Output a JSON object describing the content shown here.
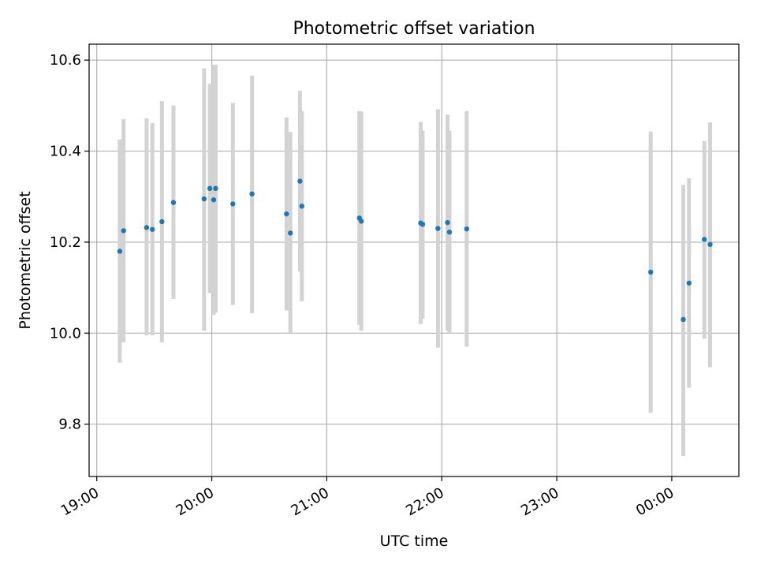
{
  "chart_data": {
    "type": "scatter",
    "title": "Photometric offset variation",
    "xlabel": "UTC time",
    "ylabel": "Photometric offset",
    "x_ticks": [
      "19:00",
      "20:00",
      "21:00",
      "22:00",
      "23:00",
      "00:00"
    ],
    "y_ticks": [
      "9.8",
      "10.0",
      "10.2",
      "10.4",
      "10.6"
    ],
    "xlim": [
      "18:56",
      "00:35"
    ],
    "ylim": [
      9.685,
      10.635
    ],
    "grid": true,
    "legend": "none",
    "series": [
      {
        "points": [
          {
            "time": "19:12",
            "value": 10.18,
            "low": 9.935,
            "high": 10.425
          },
          {
            "time": "19:14",
            "value": 10.225,
            "low": 9.98,
            "high": 10.47
          },
          {
            "time": "19:26",
            "value": 10.232,
            "low": 9.995,
            "high": 10.472
          },
          {
            "time": "19:29",
            "value": 10.228,
            "low": 9.995,
            "high": 10.462
          },
          {
            "time": "19:34",
            "value": 10.245,
            "low": 9.98,
            "high": 10.51
          },
          {
            "time": "19:40",
            "value": 10.287,
            "low": 10.075,
            "high": 10.5
          },
          {
            "time": "19:56",
            "value": 10.295,
            "low": 10.005,
            "high": 10.582
          },
          {
            "time": "19:59",
            "value": 10.318,
            "low": 10.088,
            "high": 10.548
          },
          {
            "time": "20:01",
            "value": 10.293,
            "low": 10.04,
            "high": 10.59
          },
          {
            "time": "20:02",
            "value": 10.318,
            "low": 10.045,
            "high": 10.59
          },
          {
            "time": "20:11",
            "value": 10.284,
            "low": 10.062,
            "high": 10.506
          },
          {
            "time": "20:21",
            "value": 10.306,
            "low": 10.044,
            "high": 10.566
          },
          {
            "time": "20:39",
            "value": 10.262,
            "low": 10.05,
            "high": 10.474
          },
          {
            "time": "20:41",
            "value": 10.22,
            "low": 10.0,
            "high": 10.442
          },
          {
            "time": "20:46",
            "value": 10.334,
            "low": 10.135,
            "high": 10.533
          },
          {
            "time": "20:47",
            "value": 10.279,
            "low": 10.07,
            "high": 10.488
          },
          {
            "time": "21:17",
            "value": 10.253,
            "low": 10.018,
            "high": 10.488
          },
          {
            "time": "21:18",
            "value": 10.246,
            "low": 10.005,
            "high": 10.487
          },
          {
            "time": "21:49",
            "value": 10.242,
            "low": 10.02,
            "high": 10.464
          },
          {
            "time": "21:50",
            "value": 10.239,
            "low": 10.032,
            "high": 10.445
          },
          {
            "time": "21:58",
            "value": 10.23,
            "low": 9.968,
            "high": 10.492
          },
          {
            "time": "22:03",
            "value": 10.243,
            "low": 10.005,
            "high": 10.48
          },
          {
            "time": "22:04",
            "value": 10.222,
            "low": 10.0,
            "high": 10.445
          },
          {
            "time": "22:13",
            "value": 10.229,
            "low": 9.97,
            "high": 10.488
          },
          {
            "time": "23:49",
            "value": 10.134,
            "low": 9.825,
            "high": 10.443
          },
          {
            "time": "00:06",
            "value": 10.03,
            "low": 9.73,
            "high": 10.326
          },
          {
            "time": "00:09",
            "value": 10.11,
            "low": 9.88,
            "high": 10.34
          },
          {
            "time": "00:17",
            "value": 10.206,
            "low": 9.988,
            "high": 10.422
          },
          {
            "time": "00:20",
            "value": 10.195,
            "low": 9.925,
            "high": 10.463
          }
        ]
      }
    ],
    "colors": {
      "marker": "#1f77b4",
      "errorbar": "#d3d3d3",
      "grid": "#b0b0b0",
      "axes": "#000000"
    }
  }
}
